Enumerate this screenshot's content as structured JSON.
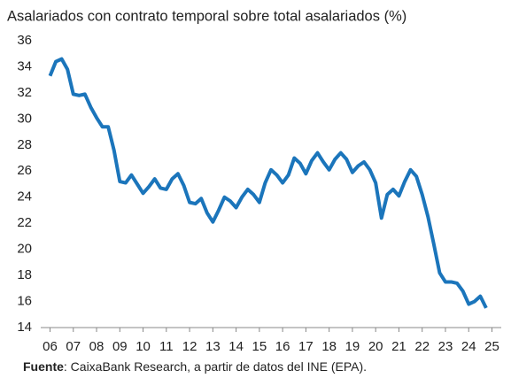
{
  "chart_data": {
    "type": "line",
    "title": "Asalariados con contrato temporal sobre total asalariados (%)",
    "source_label": "Fuente",
    "source_text": ": CaixaBank Research, a partir de datos del INE (EPA).",
    "x": [
      2006,
      2006.25,
      2006.5,
      2006.75,
      2007,
      2007.25,
      2007.5,
      2007.75,
      2008,
      2008.25,
      2008.5,
      2008.75,
      2009,
      2009.25,
      2009.5,
      2009.75,
      2010,
      2010.25,
      2010.5,
      2010.75,
      2011,
      2011.25,
      2011.5,
      2011.75,
      2012,
      2012.25,
      2012.5,
      2012.75,
      2013,
      2013.25,
      2013.5,
      2013.75,
      2014,
      2014.25,
      2014.5,
      2014.75,
      2015,
      2015.25,
      2015.5,
      2015.75,
      2016,
      2016.25,
      2016.5,
      2016.75,
      2017,
      2017.25,
      2017.5,
      2017.75,
      2018,
      2018.25,
      2018.5,
      2018.75,
      2019,
      2019.25,
      2019.5,
      2019.75,
      2020,
      2020.25,
      2020.5,
      2020.75,
      2021,
      2021.25,
      2021.5,
      2021.75,
      2022,
      2022.25,
      2022.5,
      2022.75,
      2023,
      2023.25,
      2023.5,
      2023.75,
      2024,
      2024.25,
      2024.5,
      2024.75
    ],
    "series": [
      {
        "color": "#1b75bb",
        "values": [
          33.3,
          34.4,
          34.6,
          33.8,
          31.9,
          31.8,
          31.9,
          30.9,
          30.1,
          29.4,
          29.4,
          27.6,
          25.2,
          25.1,
          25.7,
          25.0,
          24.3,
          24.8,
          25.4,
          24.7,
          24.6,
          25.4,
          25.8,
          24.9,
          23.6,
          23.5,
          23.9,
          22.8,
          22.1,
          23.0,
          24.0,
          23.7,
          23.2,
          24.0,
          24.6,
          24.2,
          23.6,
          25.1,
          26.1,
          25.7,
          25.1,
          25.7,
          27.0,
          26.6,
          25.8,
          26.8,
          27.4,
          26.7,
          26.1,
          26.9,
          27.4,
          26.9,
          25.9,
          26.4,
          26.7,
          26.1,
          25.1,
          22.4,
          24.2,
          24.6,
          24.1,
          25.2,
          26.1,
          25.6,
          24.2,
          22.5,
          20.4,
          18.2,
          17.5,
          17.5,
          17.4,
          16.8,
          15.8,
          16.0,
          16.4,
          15.5
        ]
      }
    ],
    "xlim": [
      2005.6,
      2025.4
    ],
    "xticks": [
      {
        "value": 2006,
        "label": "06"
      },
      {
        "value": 2007,
        "label": "07"
      },
      {
        "value": 2008,
        "label": "08"
      },
      {
        "value": 2009,
        "label": "09"
      },
      {
        "value": 2010,
        "label": "10"
      },
      {
        "value": 2011,
        "label": "11"
      },
      {
        "value": 2012,
        "label": "12"
      },
      {
        "value": 2013,
        "label": "13"
      },
      {
        "value": 2014,
        "label": "14"
      },
      {
        "value": 2015,
        "label": "15"
      },
      {
        "value": 2016,
        "label": "16"
      },
      {
        "value": 2017,
        "label": "17"
      },
      {
        "value": 2018,
        "label": "18"
      },
      {
        "value": 2019,
        "label": "19"
      },
      {
        "value": 2020,
        "label": "20"
      },
      {
        "value": 2021,
        "label": "21"
      },
      {
        "value": 2022,
        "label": "22"
      },
      {
        "value": 2023,
        "label": "23"
      },
      {
        "value": 2024,
        "label": "24"
      },
      {
        "value": 2025,
        "label": "25"
      }
    ],
    "ylim": [
      14,
      36
    ],
    "yticks": [
      14,
      16,
      18,
      20,
      22,
      24,
      26,
      28,
      30,
      32,
      34,
      36
    ]
  }
}
